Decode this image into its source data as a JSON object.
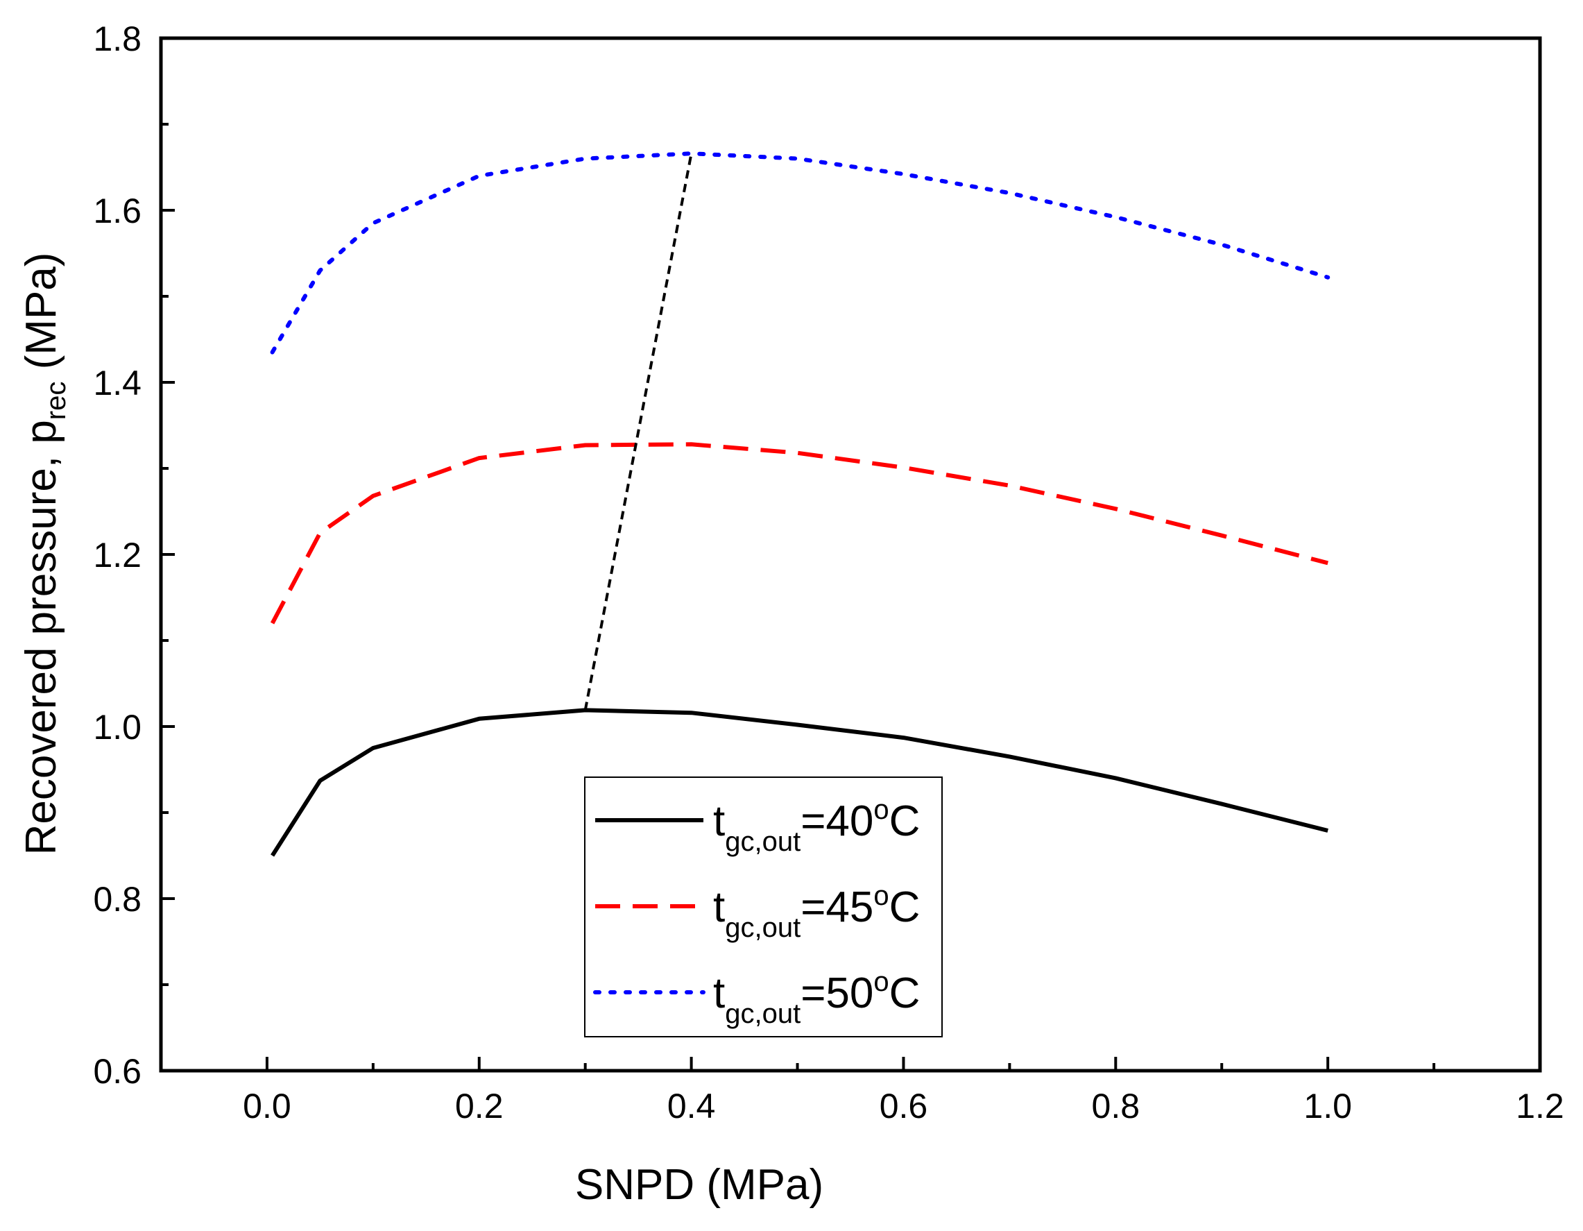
{
  "chart_data": {
    "type": "line",
    "title": "",
    "xlabel": "SNPD (MPa)",
    "ylabel": {
      "main": "Recovered pressure, p",
      "sub": "rec",
      "unit": " (MPa)"
    },
    "xlim": [
      -0.1,
      1.2
    ],
    "ylim": [
      0.6,
      1.8
    ],
    "x_ticks": [
      0.0,
      0.2,
      0.4,
      0.6,
      0.8,
      1.0,
      1.2
    ],
    "x_tick_labels": [
      "0.0",
      "0.2",
      "0.4",
      "0.6",
      "0.8",
      "1.0",
      "1.2"
    ],
    "y_ticks": [
      0.6,
      0.8,
      1.0,
      1.2,
      1.4,
      1.6,
      1.8
    ],
    "y_tick_labels": [
      "0.6",
      "0.8",
      "1.0",
      "1.2",
      "1.4",
      "1.6",
      "1.8"
    ],
    "grid": false,
    "legend_position": "bottom-center",
    "series": [
      {
        "name": "t_gc,out=40oC",
        "label": {
          "main": "t",
          "sub": "gc,out",
          "eq": "=40",
          "sup": "o",
          "end": "C"
        },
        "color": "#000000",
        "style": "solid",
        "x": [
          0.005,
          0.05,
          0.1,
          0.2,
          0.3,
          0.4,
          0.5,
          0.6,
          0.7,
          0.8,
          0.9,
          1.0
        ],
        "y": [
          0.85,
          0.937,
          0.975,
          1.009,
          1.019,
          1.016,
          1.002,
          0.987,
          0.965,
          0.94,
          0.91,
          0.879
        ]
      },
      {
        "name": "t_gc,out=45oC",
        "label": {
          "main": "t",
          "sub": "gc,out",
          "eq": "=45",
          "sup": "o",
          "end": "C"
        },
        "color": "#ff0000",
        "style": "dashed",
        "x": [
          0.005,
          0.05,
          0.1,
          0.2,
          0.3,
          0.4,
          0.5,
          0.6,
          0.7,
          0.8,
          0.9,
          1.0
        ],
        "y": [
          1.12,
          1.225,
          1.268,
          1.312,
          1.327,
          1.328,
          1.318,
          1.301,
          1.28,
          1.253,
          1.222,
          1.19
        ]
      },
      {
        "name": "t_gc,out=50oC",
        "label": {
          "main": "t",
          "sub": "gc,out",
          "eq": "=50",
          "sup": "o",
          "end": "C"
        },
        "color": "#0000ff",
        "style": "dotted",
        "x": [
          0.005,
          0.05,
          0.1,
          0.2,
          0.3,
          0.4,
          0.5,
          0.6,
          0.7,
          0.8,
          0.9,
          1.0
        ],
        "y": [
          1.435,
          1.53,
          1.585,
          1.64,
          1.66,
          1.666,
          1.66,
          1.642,
          1.62,
          1.592,
          1.56,
          1.522
        ]
      }
    ],
    "annotations": [
      {
        "type": "optimum-connector",
        "color": "#000000",
        "style": "dashed",
        "x": [
          0.3,
          0.4
        ],
        "y": [
          1.019,
          1.666
        ]
      }
    ]
  }
}
